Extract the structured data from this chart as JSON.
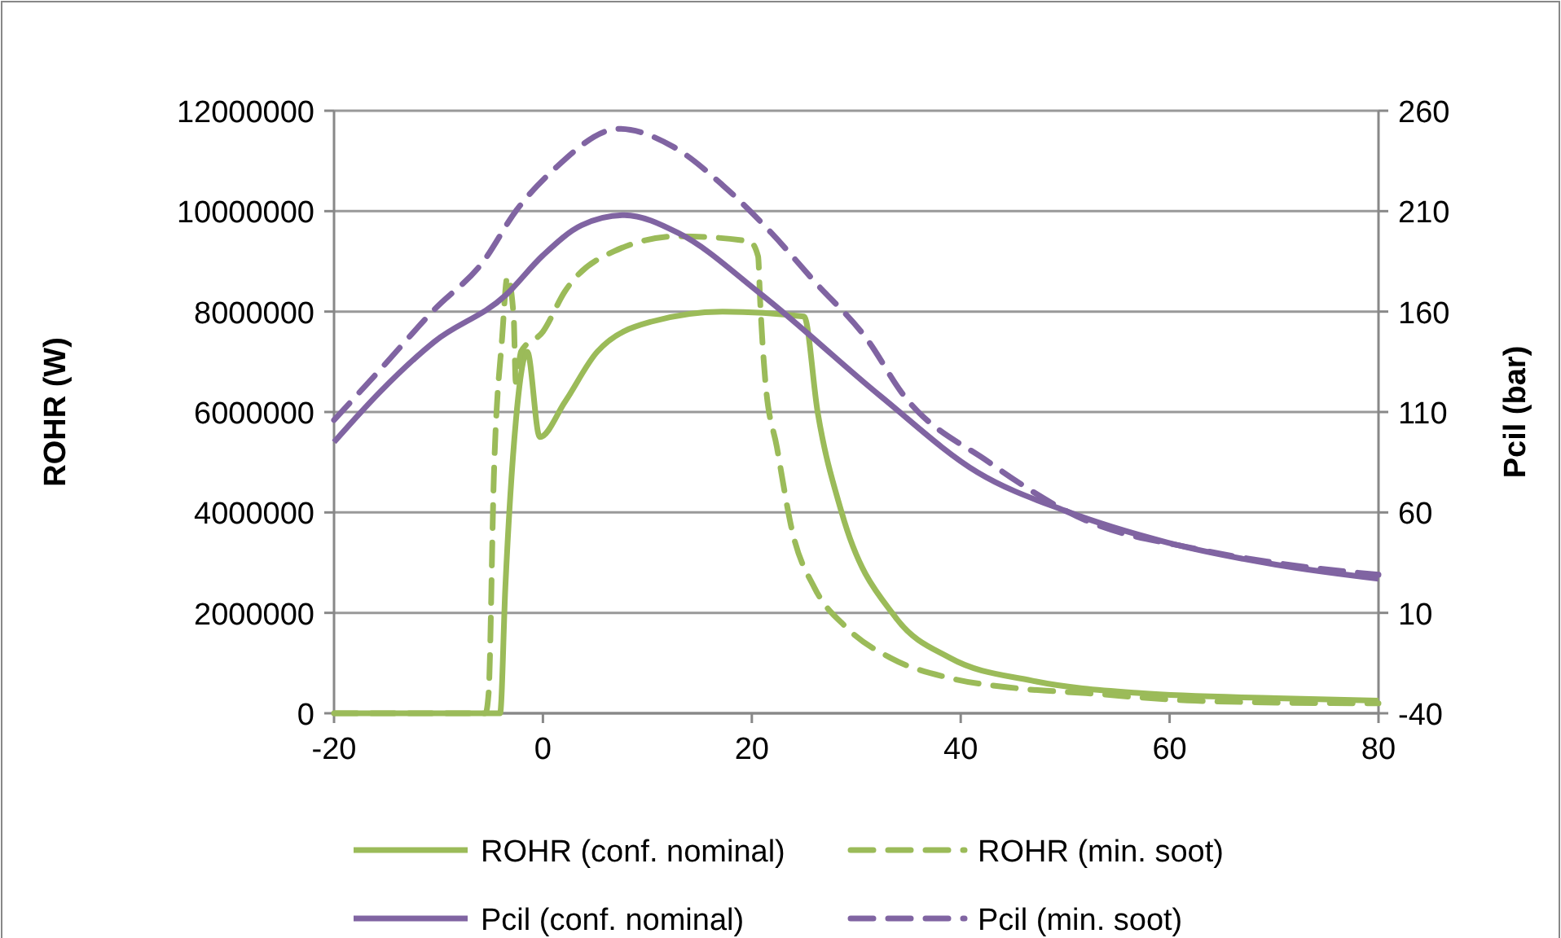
{
  "chart_data": {
    "type": "line",
    "xlabel": null,
    "ylabel": "ROHR (W)",
    "y2label": "Pcil (bar)",
    "xlim": [
      -20,
      80
    ],
    "xticks": [
      -20,
      0,
      20,
      40,
      60,
      80
    ],
    "ylim": [
      0,
      12000000
    ],
    "yticks": [
      0,
      2000000,
      4000000,
      6000000,
      8000000,
      10000000,
      12000000
    ],
    "y2lim": [
      -40,
      260
    ],
    "y2ticks": [
      -40,
      10,
      60,
      110,
      160,
      210,
      260
    ],
    "grid": "y",
    "legend": "bottom",
    "series": [
      {
        "name": "ROHR (conf. nominal)",
        "color": "#9bbb59",
        "line_style": "solid",
        "x": [
          -20,
          -4.1,
          -3.6,
          -2.6,
          -1.5,
          -0.3,
          2.1,
          5.2,
          10.4,
          17.2,
          25,
          26.3,
          28.6,
          33.8,
          39,
          46.8,
          57.2,
          70.2,
          80
        ],
        "values": [
          0,
          0,
          2500000,
          5800000,
          7200000,
          5500000,
          6200000,
          7200000,
          7800000,
          8000000,
          7900000,
          6000000,
          4000000,
          1900000,
          1100000,
          650000,
          400000,
          300000,
          250000
        ]
      },
      {
        "name": "ROHR (min. soot)",
        "color": "#9bbb59",
        "line_style": "dashed",
        "x": [
          -20,
          -5.5,
          -5.2,
          -4.7,
          -3.9,
          -3.4,
          -2.8,
          -2.6,
          -2.1,
          0,
          2.1,
          6.8,
          13,
          19.8,
          20.6,
          20.8,
          21.3,
          22.4,
          23.9,
          26,
          29.1,
          33.3,
          39,
          45.3,
          52,
          62.4,
          78,
          80
        ],
        "values": [
          0,
          0,
          400000,
          4700000,
          7500000,
          8700000,
          7900000,
          6600000,
          7200000,
          7600000,
          8400000,
          9200000,
          9500000,
          9400000,
          9100000,
          8200000,
          6600000,
          5300000,
          3600000,
          2500000,
          1700000,
          1100000,
          700000,
          500000,
          400000,
          250000,
          200000,
          200000
        ]
      },
      {
        "name": "Pcil (conf. nominal)",
        "color": "#8064a2",
        "line_style": "solid",
        "axis": "y2",
        "x": [
          -20,
          -15.6,
          -10.4,
          -3.6,
          0,
          3.7,
          7.8,
          13,
          20.8,
          32.3,
          41.6,
          49.9,
          59.8,
          70.2,
          80
        ],
        "values": [
          95,
          120,
          145,
          168,
          188,
          203,
          208,
          199,
          169,
          118,
          80,
          61,
          45,
          34,
          27
        ]
      },
      {
        "name": "Pcil (min. soot)",
        "color": "#8064a2",
        "line_style": "dashed",
        "axis": "y2",
        "x": [
          -20,
          -15.6,
          -10.4,
          -5.7,
          -2.6,
          1.1,
          7.3,
          12.5,
          17.2,
          21.9,
          26,
          31.2,
          34.3,
          42.7,
          52,
          62.4,
          72.8,
          80
        ],
        "values": [
          106,
          131,
          161,
          185,
          210,
          231,
          251,
          242,
          223,
          199,
          175,
          145,
          120,
          85,
          56,
          42,
          33,
          29
        ]
      }
    ]
  }
}
